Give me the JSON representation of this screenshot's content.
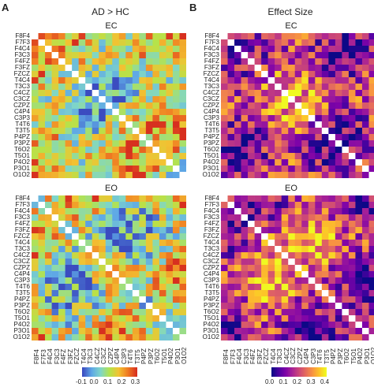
{
  "panels": {
    "A": {
      "letter": "A",
      "title": "AD > HC"
    },
    "B": {
      "letter": "B",
      "title": "Effect Size"
    }
  },
  "subtitles": {
    "ec": "EC",
    "eo": "EO"
  },
  "channels": [
    "F8F4",
    "F7F3",
    "F4C4",
    "F3C3",
    "F4FZ",
    "F3FZ",
    "FZCZ",
    "T4C4",
    "T3C3",
    "C4CZ",
    "C3CZ",
    "CZPZ",
    "C4P4",
    "C3P3",
    "T4T6",
    "T3T5",
    "P4PZ",
    "P3PZ",
    "T6O2",
    "T5O1",
    "P4O2",
    "P3O1",
    "O1O2"
  ],
  "colorbars": {
    "diff": {
      "ticks": [
        "-0.1",
        "0.0",
        "0.1",
        "0.2",
        "0.3"
      ],
      "colors": [
        "#3b4cc0",
        "#5fa8e6",
        "#7fd6c8",
        "#b5e34a",
        "#f2c232",
        "#f07d22",
        "#d7301f"
      ]
    },
    "effect": {
      "ticks": [
        "0.0",
        "0.1",
        "0.2",
        "0.3",
        "0.4"
      ],
      "colors": [
        "#0d0887",
        "#4c02a1",
        "#7e03a8",
        "#a92395",
        "#cc4778",
        "#e56b5d",
        "#f89441",
        "#fdc328",
        "#f0f921"
      ]
    }
  },
  "chart_data": [
    {
      "type": "heatmap",
      "panel": "A",
      "condition": "EC",
      "measure": "AD > HC",
      "rows": "channels",
      "cols": "channels",
      "diagonal": "none",
      "range": [
        -0.15,
        0.35
      ]
    },
    {
      "type": "heatmap",
      "panel": "A",
      "condition": "EO",
      "measure": "AD > HC",
      "rows": "channels",
      "cols": "channels",
      "diagonal": "none",
      "range": [
        -0.15,
        0.35
      ]
    },
    {
      "type": "heatmap",
      "panel": "B",
      "condition": "EC",
      "measure": "Effect Size",
      "rows": "channels",
      "cols": "channels",
      "diagonal": "none",
      "range": [
        0.0,
        0.45
      ]
    },
    {
      "type": "heatmap",
      "panel": "B",
      "condition": "EO",
      "measure": "Effect Size",
      "rows": "channels",
      "cols": "channels",
      "diagonal": "none",
      "range": [
        0.0,
        0.45
      ]
    }
  ]
}
